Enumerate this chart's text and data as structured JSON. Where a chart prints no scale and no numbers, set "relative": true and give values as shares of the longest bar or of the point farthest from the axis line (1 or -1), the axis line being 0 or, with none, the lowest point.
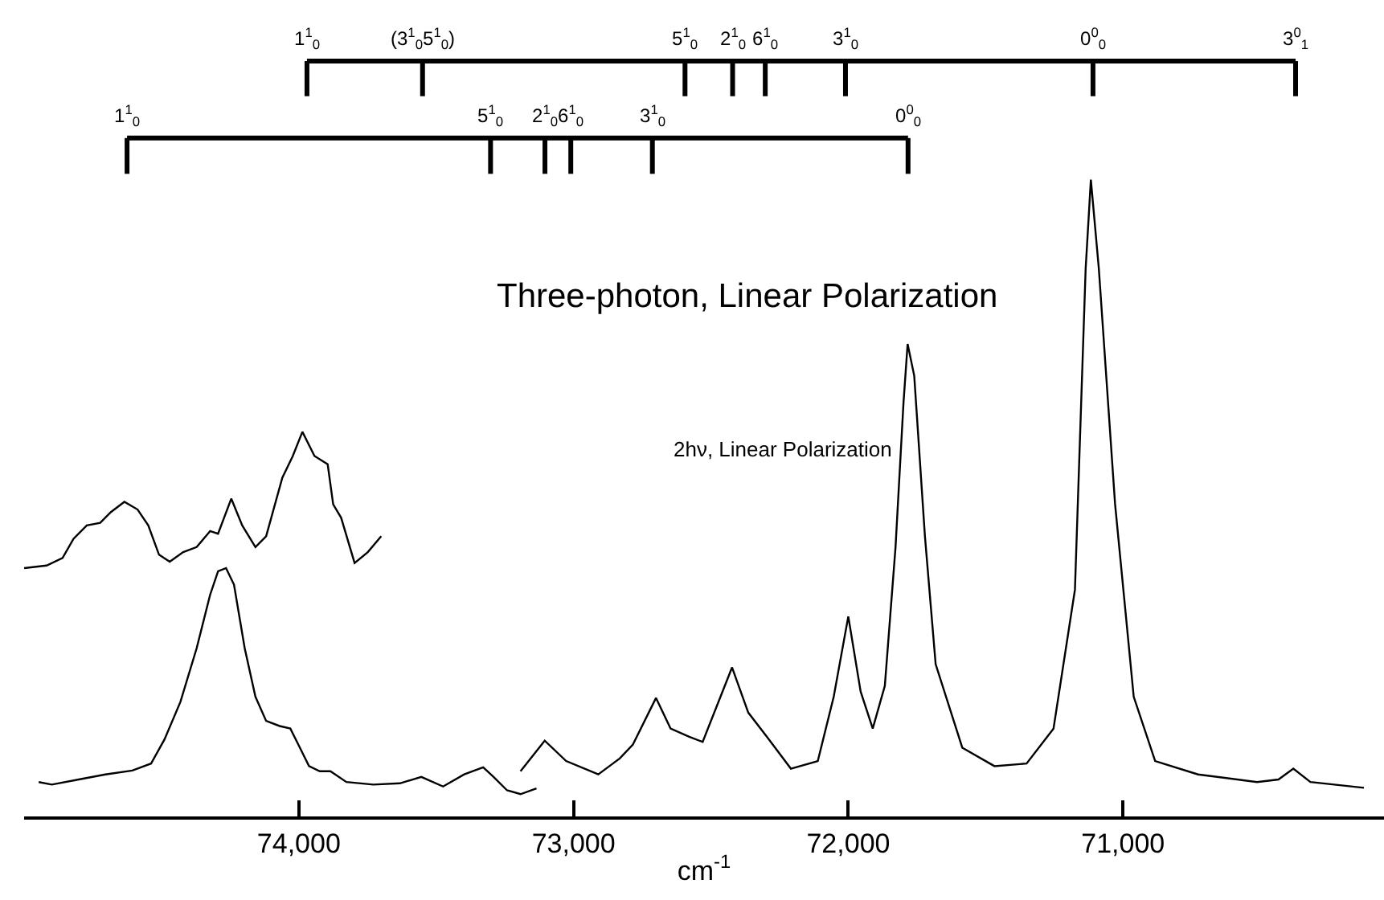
{
  "chart_data": {
    "type": "line",
    "relative": true,
    "xlabel": "cm$^{-1}$",
    "xlim": [
      75000,
      70050
    ],
    "xticks": [
      {
        "value": 74000,
        "label": "74,000"
      },
      {
        "value": 73000,
        "label": "73,000"
      },
      {
        "value": 72000,
        "label": "72,000"
      },
      {
        "value": 71000,
        "label": "71,000"
      }
    ],
    "marker": "none",
    "line_style": "solid",
    "series": [
      {
        "color": "#000000",
        "x": [
          75000,
          74918,
          74860,
          74820,
          74772,
          74723,
          74684,
          74635,
          74587,
          74548,
          74509,
          74470,
          74421,
          74372,
          74323,
          74294,
          74246,
          74206,
          74158,
          74119,
          74060,
          74022,
          73987,
          73943,
          73895,
          73875,
          73846,
          73797,
          73749,
          73700
        ],
        "values": [
          0.39,
          0.394,
          0.406,
          0.436,
          0.457,
          0.461,
          0.478,
          0.494,
          0.482,
          0.457,
          0.411,
          0.4,
          0.415,
          0.423,
          0.448,
          0.444,
          0.499,
          0.457,
          0.423,
          0.44,
          0.532,
          0.566,
          0.604,
          0.566,
          0.553,
          0.49,
          0.469,
          0.398,
          0.415,
          0.44
        ]
      },
      {
        "color": "#000000",
        "x": [
          74947,
          74899,
          74801,
          74704,
          74606,
          74538,
          74489,
          74431,
          74372,
          74323,
          74294,
          74265,
          74236,
          74197,
          74158,
          74119,
          74070,
          74031,
          74002,
          73963,
          73924,
          73885,
          73827,
          73729,
          73632,
          73554,
          73475,
          73398,
          73329,
          73291,
          73242,
          73193,
          73135
        ],
        "values": [
          0.054,
          0.05,
          0.058,
          0.066,
          0.072,
          0.083,
          0.121,
          0.18,
          0.264,
          0.348,
          0.385,
          0.39,
          0.364,
          0.264,
          0.188,
          0.15,
          0.142,
          0.138,
          0.113,
          0.079,
          0.071,
          0.071,
          0.054,
          0.05,
          0.052,
          0.062,
          0.047,
          0.066,
          0.077,
          0.062,
          0.041,
          0.035,
          0.044
        ]
      },
      {
        "color": "#000000",
        "x": [
          73193,
          73105,
          73027,
          72910,
          72832,
          72784,
          72700,
          72647,
          72579,
          72530,
          72423,
          72364,
          72296,
          72209,
          72111,
          72053,
          72000,
          71955,
          71911,
          71867,
          71828,
          71799,
          71784,
          71760,
          71721,
          71682,
          71585,
          71468,
          71351,
          71253,
          71175,
          71136,
          71117,
          71088,
          71029,
          70961,
          70883,
          70727,
          70512,
          70434,
          70380,
          70318,
          70123
        ],
        "values": [
          0.071,
          0.119,
          0.087,
          0.066,
          0.091,
          0.113,
          0.186,
          0.138,
          0.125,
          0.117,
          0.234,
          0.163,
          0.125,
          0.075,
          0.087,
          0.188,
          0.314,
          0.196,
          0.138,
          0.205,
          0.423,
          0.65,
          0.742,
          0.692,
          0.44,
          0.239,
          0.108,
          0.079,
          0.083,
          0.138,
          0.356,
          0.86,
          1.0,
          0.86,
          0.491,
          0.188,
          0.087,
          0.066,
          0.054,
          0.058,
          0.075,
          0.054,
          0.045
        ]
      }
    ],
    "annotations": [
      "Three-photon, Linear Polarization",
      "2hν, Linear Polarization",
      "1$^{1}$$_{0}$",
      "(3$^{1}$$_{0}$5$^{1}$$_{0}$)",
      "5$^{1}$$_{0}$",
      "2$^{1}$$_{0}$",
      "6$^{1}$$_{0}$",
      "3$^{1}$$_{0}$",
      "0$^{0}$$_{0}$",
      "3$^{0}$$_{1}$",
      "1$^{1}$$_{0}$",
      "5$^{1}$$_{0}$",
      "2$^{1}$$_{0}$",
      "6$^{1}$$_{0}$",
      "3$^{1}$$_{0}$",
      "0$^{0}$$_{0}$"
    ]
  }
}
